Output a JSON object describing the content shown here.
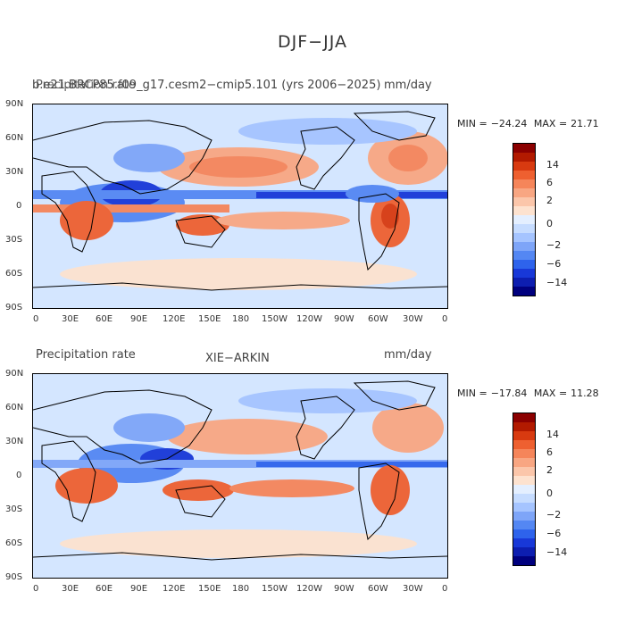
{
  "page": {
    "title": "DJF−JJA"
  },
  "panels": [
    {
      "left_label": "b.e21.BRCP85.f09_g17.cesm2−cmip5.101 (yrs 2006−2025)",
      "left_label_overlay": "Precipitation rate",
      "center_label": "",
      "right_label": "mm/day",
      "min_label": "MIN =",
      "min_value": "−24.24",
      "max_label": "MAX =",
      "max_value": "21.71"
    },
    {
      "left_label": "Precipitation rate",
      "left_label_overlay": "",
      "center_label": "XIE−ARKIN",
      "right_label": "mm/day",
      "min_label": "MIN =",
      "min_value": "−17.84",
      "max_label": "MAX =",
      "max_value": "11.28"
    }
  ],
  "axes": {
    "y_ticks": [
      "90N",
      "60N",
      "30N",
      "0",
      "30S",
      "60S",
      "90S"
    ],
    "x_ticks": [
      "0",
      "30E",
      "60E",
      "90E",
      "120E",
      "150E",
      "180",
      "150W",
      "120W",
      "90W",
      "60W",
      "30W",
      "0"
    ]
  },
  "colorbar": {
    "labels": [
      "14",
      "6",
      "2",
      "0",
      "−2",
      "−6",
      "−14"
    ],
    "colors": [
      "#8b0000",
      "#b21a00",
      "#d83a10",
      "#ee6030",
      "#f5855a",
      "#f8a682",
      "#fbc6aa",
      "#fde2cf",
      "#e4efff",
      "#c6dcff",
      "#a5c4ff",
      "#7ea5f8",
      "#5487f3",
      "#2e63ec",
      "#1838d8",
      "#0d1eb0",
      "#00007e"
    ]
  }
}
